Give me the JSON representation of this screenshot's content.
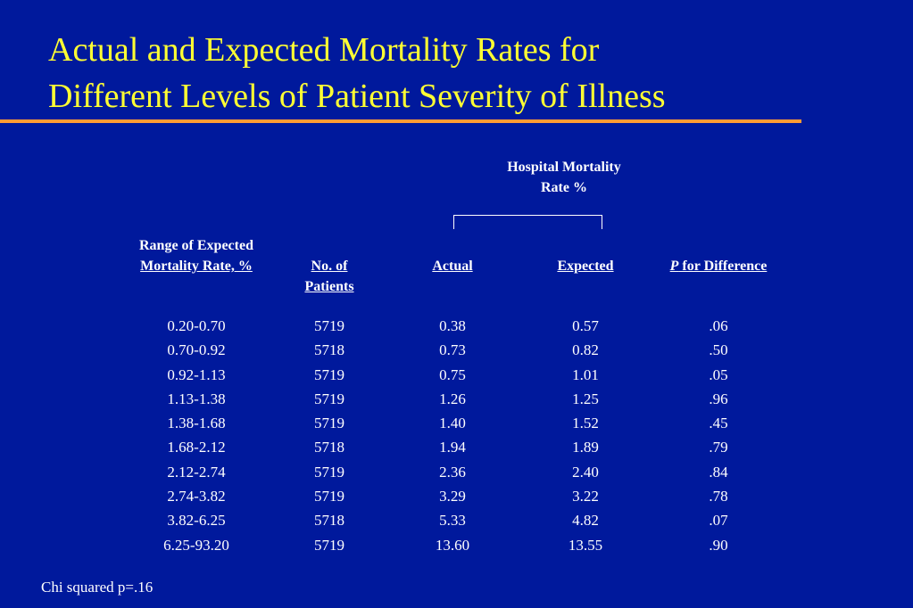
{
  "slide": {
    "title_line1": "Actual and Expected Mortality Rates for",
    "title_line2": "Different Levels of Patient Severity of Illness",
    "group_header_line1": "Hospital Mortality",
    "group_header_line2": "Rate %",
    "footnote": "Chi squared p=.16"
  },
  "colors": {
    "background": "#00199c",
    "title": "#ffff33",
    "rule": "#ff9c33",
    "text": "#ffffff"
  },
  "table": {
    "headers": {
      "range_line1": "Range of Expected",
      "range_line2": "Mortality Rate, %",
      "patients_line1": "No. of",
      "patients_line2": "Patients",
      "actual": "Actual",
      "expected": "Expected",
      "p_italic": "P",
      "p_rest": " for Difference"
    },
    "rows": [
      {
        "range": "0.20-0.70",
        "patients": "5719",
        "actual": "0.38",
        "expected": "0.57",
        "p": ".06"
      },
      {
        "range": "0.70-0.92",
        "patients": "5718",
        "actual": "0.73",
        "expected": "0.82",
        "p": ".50"
      },
      {
        "range": "0.92-1.13",
        "patients": "5719",
        "actual": "0.75",
        "expected": "1.01",
        "p": ".05"
      },
      {
        "range": "1.13-1.38",
        "patients": "5719",
        "actual": "1.26",
        "expected": "1.25",
        "p": ".96"
      },
      {
        "range": "1.38-1.68",
        "patients": "5719",
        "actual": "1.40",
        "expected": "1.52",
        "p": ".45"
      },
      {
        "range": "1.68-2.12",
        "patients": "5718",
        "actual": "1.94",
        "expected": "1.89",
        "p": ".79"
      },
      {
        "range": "2.12-2.74",
        "patients": "5719",
        "actual": "2.36",
        "expected": "2.40",
        "p": ".84"
      },
      {
        "range": "2.74-3.82",
        "patients": "5719",
        "actual": "3.29",
        "expected": "3.22",
        "p": ".78"
      },
      {
        "range": "3.82-6.25",
        "patients": "5718",
        "actual": "5.33",
        "expected": "4.82",
        "p": ".07"
      },
      {
        "range": "6.25-93.20",
        "patients": "5719",
        "actual": "13.60",
        "expected": "13.55",
        "p": ".90"
      }
    ]
  }
}
